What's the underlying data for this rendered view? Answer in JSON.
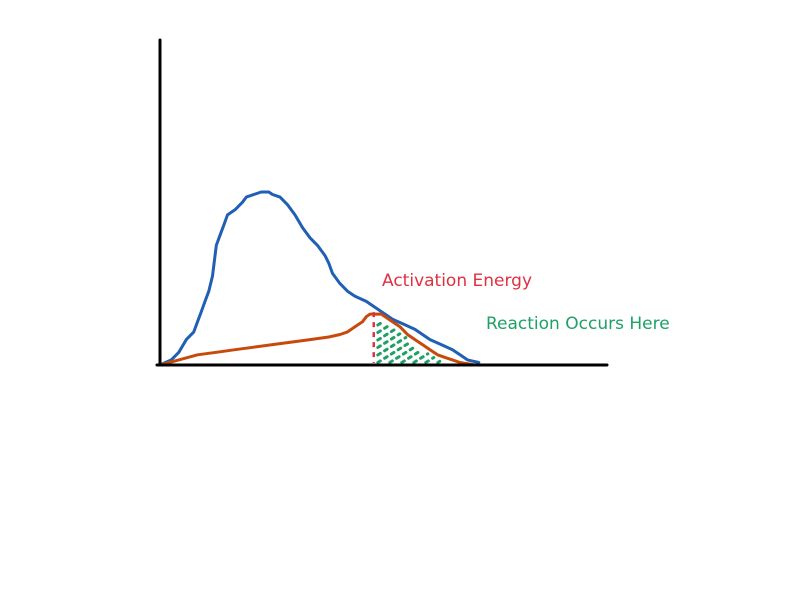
{
  "chart_data": {
    "type": "line",
    "title": "",
    "xlabel": "",
    "ylabel": "",
    "grid": false,
    "xlim": [
      0,
      100
    ],
    "ylim": [
      0,
      100
    ],
    "series": [
      {
        "color": "#1f5fb4",
        "x": [
          0,
          3,
          5,
          7,
          9,
          10,
          11,
          12,
          13,
          14,
          15,
          16,
          17,
          18,
          20,
          22,
          23,
          25,
          27,
          29,
          30,
          32,
          34,
          36,
          38,
          40,
          42,
          44,
          45,
          46,
          48,
          50,
          52,
          55,
          57,
          60,
          62,
          65,
          68,
          70,
          72,
          75,
          78,
          80,
          82,
          85
        ],
        "y": [
          0,
          2,
          5,
          10,
          13,
          17,
          21,
          25,
          29,
          35,
          47,
          51,
          55,
          59,
          61,
          64,
          66,
          67,
          68,
          68,
          67,
          66,
          63,
          59,
          54,
          50,
          47,
          43,
          40,
          36,
          32,
          29,
          27,
          25,
          23,
          20,
          18,
          16,
          14,
          12,
          10,
          8,
          6,
          4,
          2,
          1
        ]
      },
      {
        "color": "#c74a0c",
        "x": [
          0,
          5,
          10,
          15,
          20,
          25,
          30,
          35,
          40,
          45,
          48,
          50,
          52,
          54,
          55,
          56,
          57,
          58,
          59,
          60,
          62,
          64,
          66,
          68,
          70,
          72,
          74,
          76,
          78,
          80,
          82,
          84
        ],
        "y": [
          0,
          2,
          4,
          5,
          6,
          7,
          8,
          9,
          10,
          11,
          12,
          13,
          15,
          17,
          19,
          20,
          20,
          20,
          20,
          19,
          17,
          15,
          12,
          10,
          8,
          6,
          4,
          3,
          2,
          1,
          0.5,
          0
        ]
      }
    ],
    "annotations": [
      {
        "text": "Activation Energy",
        "x": 57,
        "color": "#e03040"
      },
      {
        "text": "Reaction Occurs Here",
        "color": "#1fa066"
      }
    ]
  }
}
